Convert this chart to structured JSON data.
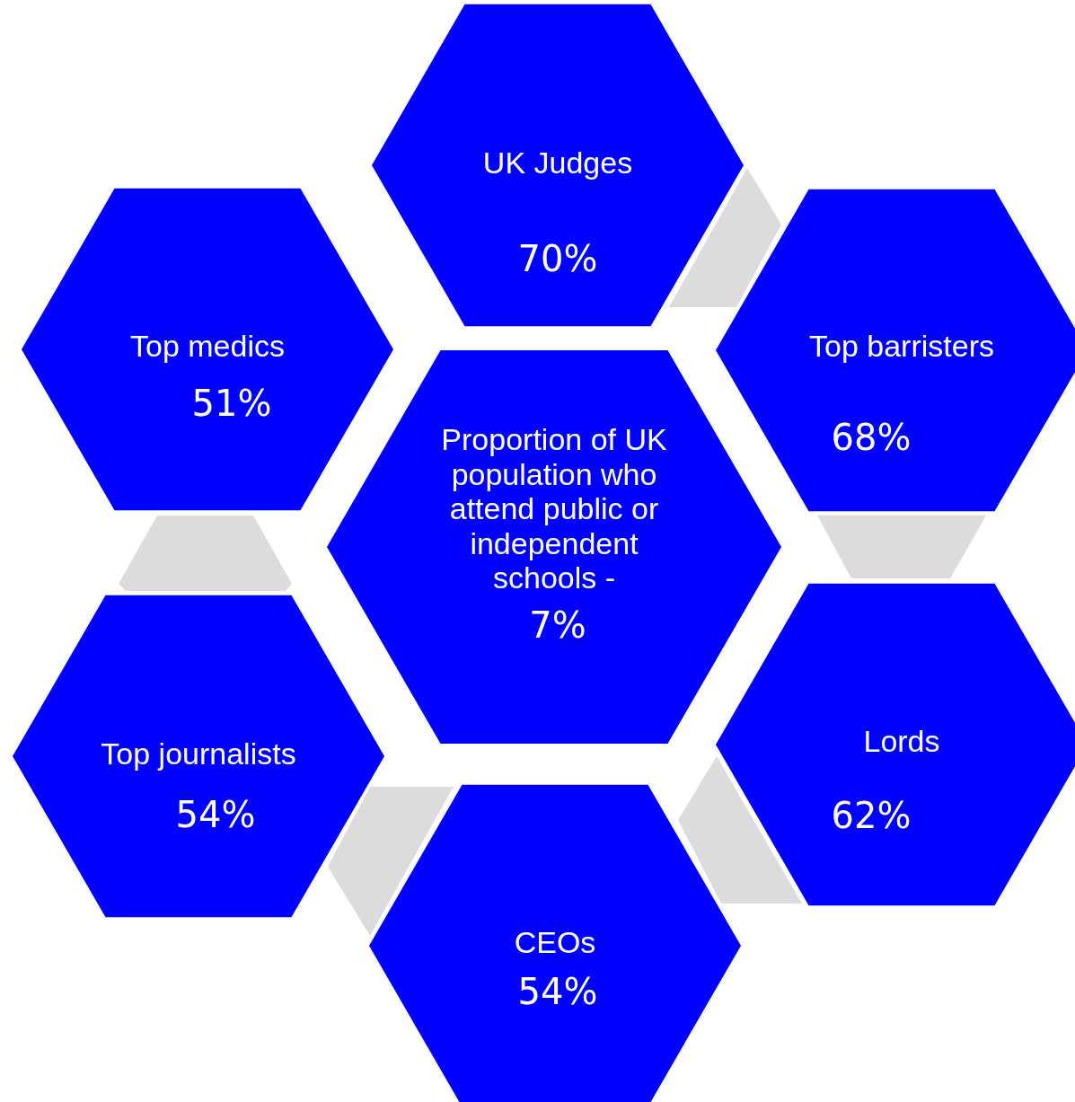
{
  "chart_data": {
    "type": "other",
    "categories": [
      "Proportion of UK population who attend public or independent schools -",
      "UK Judges",
      "Top barristers",
      "Lords",
      "CEOs",
      "Top journalists",
      "Top medics"
    ],
    "values": [
      7,
      70,
      68,
      62,
      54,
      54,
      51
    ],
    "value_labels": [
      "7%",
      "70%",
      "68%",
      "62%",
      "54%",
      "54%",
      "51%"
    ],
    "color": "#0000ff"
  }
}
